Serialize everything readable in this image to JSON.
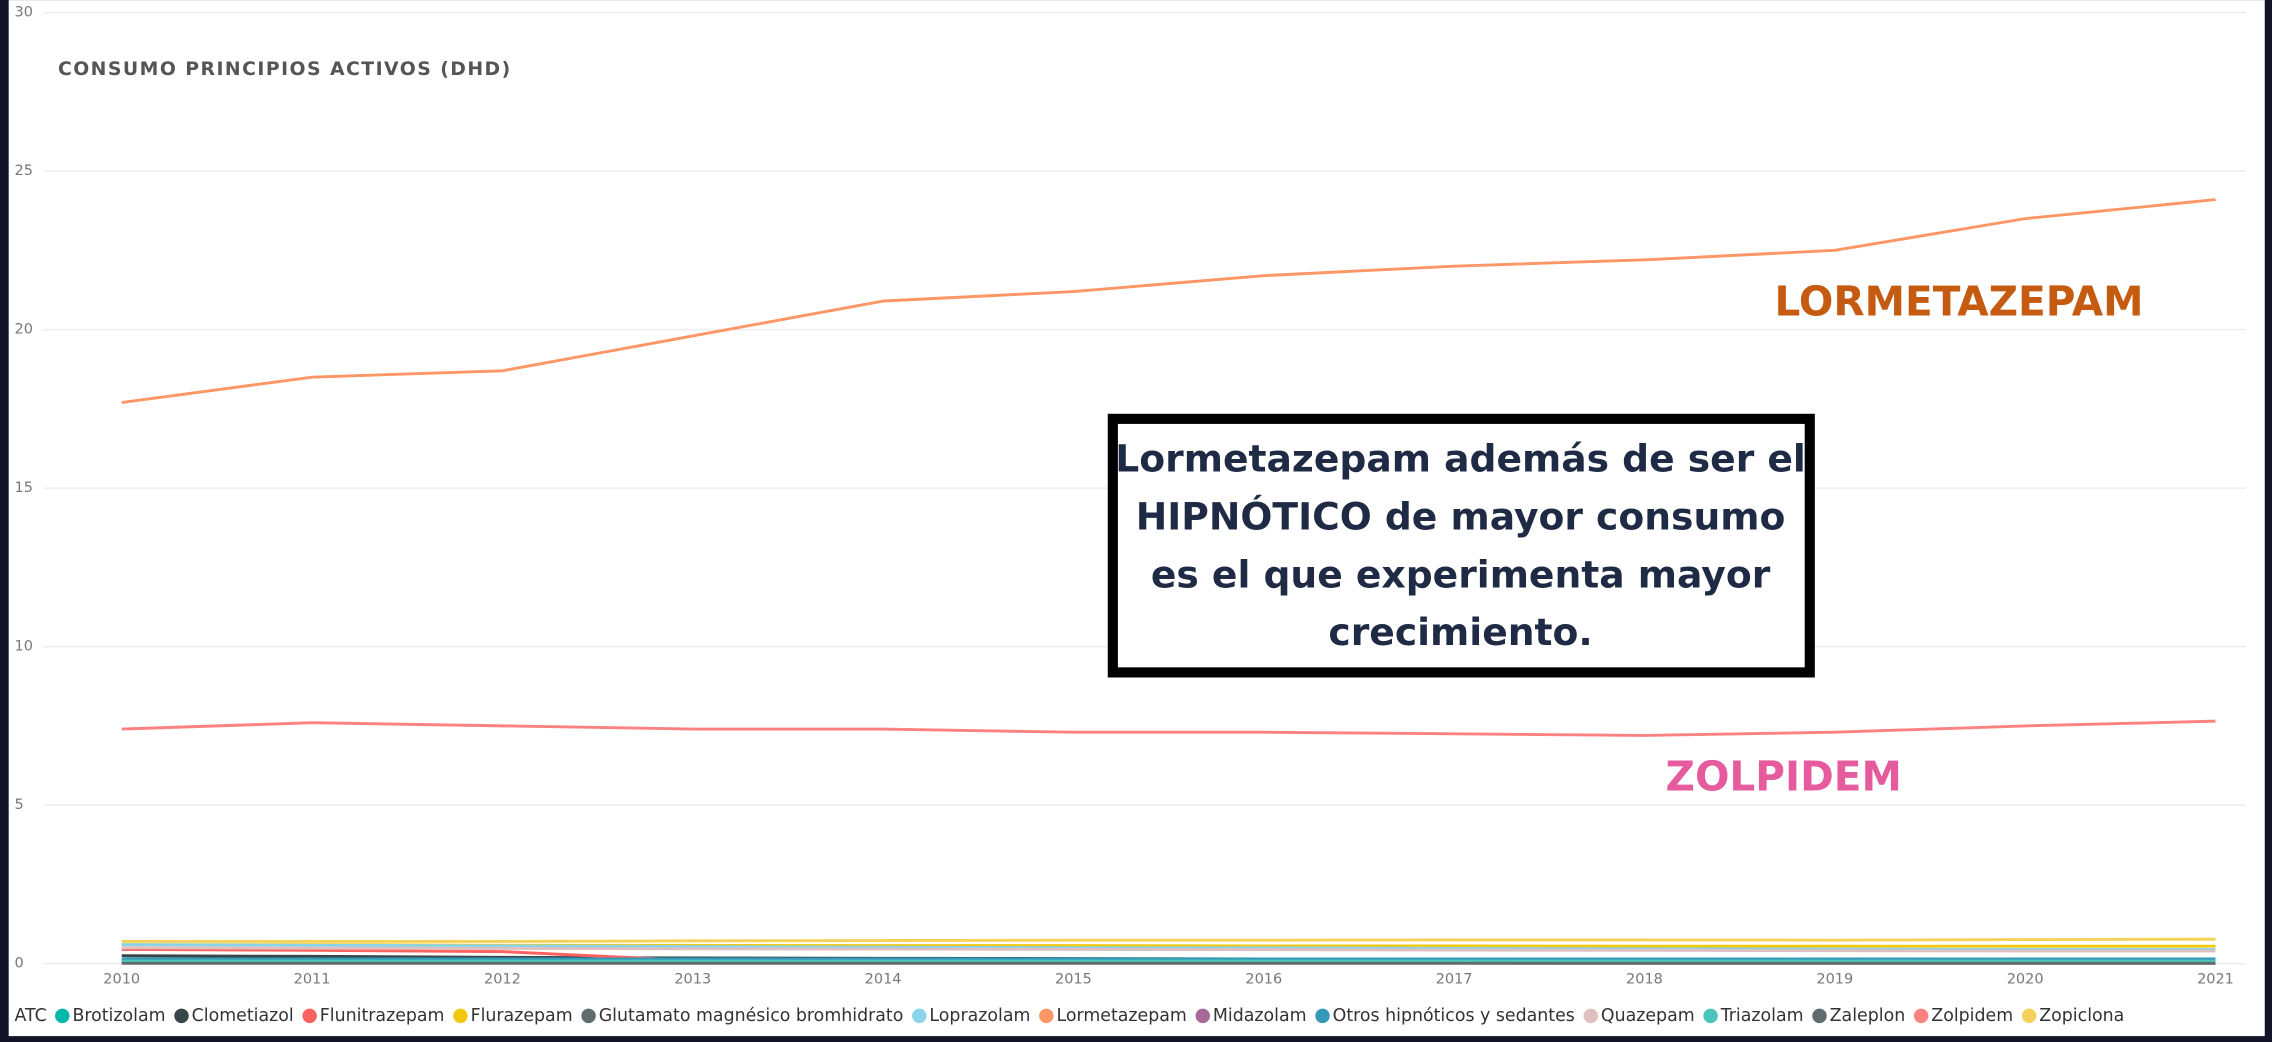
{
  "chart_data": {
    "type": "line",
    "title": "CONSUMO PRINCIPIOS ACTIVOS (DHD)",
    "x": [
      2010,
      2011,
      2012,
      2013,
      2014,
      2015,
      2016,
      2017,
      2018,
      2019,
      2020,
      2021
    ],
    "xlim": [
      2010,
      2021
    ],
    "xticks": [
      2010,
      2011,
      2012,
      2013,
      2014,
      2015,
      2016,
      2017,
      2018,
      2019,
      2020,
      2021
    ],
    "ylim": [
      0,
      30
    ],
    "yticks": [
      0,
      5,
      10,
      15,
      20,
      25,
      30
    ],
    "grid": true,
    "legend_title": "ATC",
    "series": [
      {
        "name": "Brotizolam",
        "color": "#01B8AA",
        "values": [
          0.1,
          0.1,
          0.1,
          0.1,
          0.1,
          0.1,
          0.1,
          0.1,
          0.1,
          0.1,
          0.1,
          0.1
        ]
      },
      {
        "name": "Clometiazol",
        "color": "#374649",
        "values": [
          0.25,
          0.23,
          0.2,
          0.18,
          0.17,
          0.16,
          0.15,
          0.15,
          0.14,
          0.14,
          0.14,
          0.13
        ]
      },
      {
        "name": "Flunitrazepam",
        "color": "#FD625E",
        "values": [
          0.45,
          0.42,
          0.38,
          0.1,
          0.05,
          0.03,
          0.02,
          0.02,
          0.01,
          0.01,
          0.01,
          0.01
        ]
      },
      {
        "name": "Flurazepam",
        "color": "#F2C80F",
        "values": [
          0.6,
          0.6,
          0.58,
          0.58,
          0.57,
          0.57,
          0.56,
          0.56,
          0.55,
          0.55,
          0.55,
          0.55
        ]
      },
      {
        "name": "Glutamato magnésico bromhidrato",
        "color": "#5F6B6D",
        "values": [
          0.05,
          0.05,
          0.05,
          0.05,
          0.05,
          0.05,
          0.05,
          0.05,
          0.05,
          0.05,
          0.05,
          0.05
        ]
      },
      {
        "name": "Loprazolam",
        "color": "#8AD4EB",
        "values": [
          0.6,
          0.58,
          0.56,
          0.54,
          0.52,
          0.5,
          0.5,
          0.48,
          0.47,
          0.46,
          0.45,
          0.45
        ]
      },
      {
        "name": "Lormetazepam",
        "color": "#FE9666",
        "values": [
          17.7,
          18.5,
          18.7,
          19.8,
          20.9,
          21.2,
          21.7,
          22.0,
          22.2,
          22.5,
          23.5,
          24.1
        ]
      },
      {
        "name": "Midazolam",
        "color": "#A66999",
        "values": [
          0.02,
          0.02,
          0.02,
          0.02,
          0.02,
          0.02,
          0.02,
          0.02,
          0.02,
          0.02,
          0.02,
          0.02
        ]
      },
      {
        "name": "Otros hipnóticos y sedantes",
        "color": "#3599B8",
        "values": [
          0.15,
          0.15,
          0.15,
          0.15,
          0.15,
          0.15,
          0.15,
          0.15,
          0.15,
          0.15,
          0.15,
          0.15
        ]
      },
      {
        "name": "Quazepam",
        "color": "#DFBFBF",
        "values": [
          0.5,
          0.49,
          0.48,
          0.47,
          0.46,
          0.45,
          0.44,
          0.43,
          0.42,
          0.41,
          0.4,
          0.4
        ]
      },
      {
        "name": "Triazolam",
        "color": "#4AC5BB",
        "values": [
          0.08,
          0.08,
          0.08,
          0.08,
          0.08,
          0.08,
          0.08,
          0.08,
          0.08,
          0.08,
          0.08,
          0.08
        ]
      },
      {
        "name": "Zaleplon",
        "color": "#5F6B6D",
        "values": [
          0.01,
          0.01,
          0.01,
          0.01,
          0.01,
          0.01,
          0.01,
          0.01,
          0.01,
          0.01,
          0.01,
          0.01
        ]
      },
      {
        "name": "Zolpidem",
        "color": "#FB8281",
        "values": [
          7.4,
          7.6,
          7.5,
          7.4,
          7.4,
          7.3,
          7.3,
          7.25,
          7.2,
          7.3,
          7.5,
          7.65
        ]
      },
      {
        "name": "Zopiclona",
        "color": "#F4D25A",
        "values": [
          0.7,
          0.7,
          0.7,
          0.72,
          0.73,
          0.74,
          0.74,
          0.75,
          0.75,
          0.74,
          0.76,
          0.77
        ]
      }
    ],
    "labels": [
      {
        "text": "LORMETAZEPAM",
        "color": "#C55A11"
      },
      {
        "text": "ZOLPIDEM",
        "color": "#E65A9E"
      }
    ],
    "callout": [
      "Lormetazepam además de ser el",
      "HIPNÓTICO de mayor consumo",
      "es el que experimenta mayor",
      "crecimiento."
    ]
  }
}
